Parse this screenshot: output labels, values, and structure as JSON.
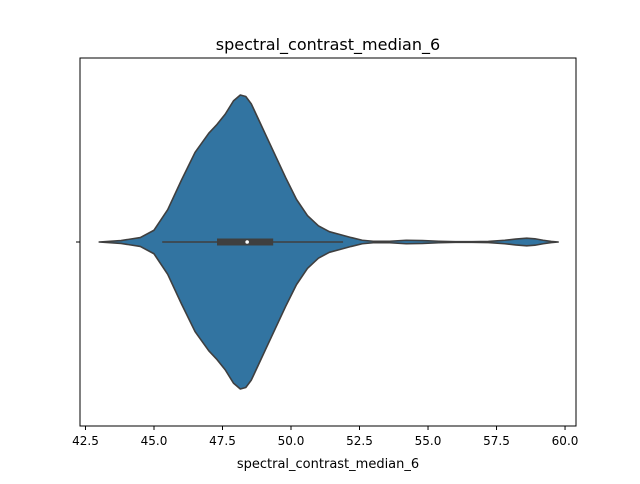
{
  "chart_data": {
    "type": "violin",
    "title": "spectral_contrast_median_6",
    "xlabel": "spectral_contrast_median_6",
    "ylabel": "",
    "xlim": [
      42.3,
      60.4
    ],
    "x_ticks": [
      42.5,
      45.0,
      47.5,
      50.0,
      52.5,
      55.0,
      57.5,
      60.0
    ],
    "x_tick_labels": [
      "42.5",
      "45.0",
      "47.5",
      "50.0",
      "52.5",
      "55.0",
      "57.5",
      "60.0"
    ],
    "y_tick_labels": [
      ""
    ],
    "grid": false,
    "fill_color": "#3274a1",
    "edge_color": "#3f3f3f",
    "density": {
      "x": [
        43.0,
        43.8,
        44.5,
        45.0,
        45.5,
        46.0,
        46.5,
        47.0,
        47.3,
        47.6,
        47.9,
        48.15,
        48.35,
        48.55,
        48.8,
        49.1,
        49.4,
        49.8,
        50.2,
        50.6,
        51.0,
        51.4,
        51.8,
        52.2,
        52.6,
        53.0,
        53.6,
        54.2,
        54.8,
        55.4,
        56.0,
        56.6,
        57.2,
        57.8,
        58.2,
        58.6,
        58.9,
        59.2,
        59.5,
        59.75
      ],
      "half_width": [
        0.0,
        0.01,
        0.03,
        0.08,
        0.22,
        0.42,
        0.61,
        0.74,
        0.8,
        0.87,
        0.96,
        1.0,
        0.99,
        0.94,
        0.84,
        0.72,
        0.6,
        0.44,
        0.29,
        0.18,
        0.11,
        0.07,
        0.05,
        0.03,
        0.012,
        0.005,
        0.005,
        0.012,
        0.01,
        0.005,
        0.002,
        0.002,
        0.004,
        0.012,
        0.02,
        0.026,
        0.022,
        0.012,
        0.004,
        0.0
      ]
    },
    "quartiles": {
      "q1": 47.3,
      "median": 48.4,
      "q3": 49.35
    },
    "whiskers": {
      "low": 45.3,
      "high": 51.9
    }
  }
}
